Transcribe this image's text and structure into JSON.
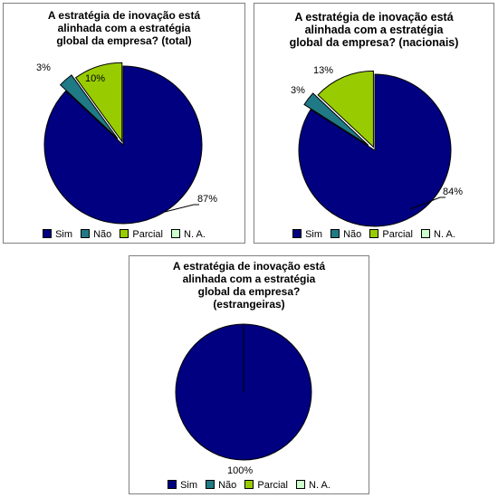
{
  "colors": {
    "Sim": "#000080",
    "Não": "#1F7A86",
    "Parcial": "#99CC00",
    "N. A.": "#CCFFCC"
  },
  "chart_data": [
    {
      "type": "pie",
      "title_lines": [
        "A estratégia de inovação está",
        "alinhada com a estratégia",
        "global da empresa? (total)"
      ],
      "categories": [
        "Sim",
        "Não",
        "Parcial",
        "N. A."
      ],
      "values": [
        87,
        3,
        10,
        0
      ],
      "labels": [
        "87%",
        "3%",
        "10%",
        ""
      ],
      "legend": [
        "Sim",
        "Não",
        "Parcial",
        "N. A."
      ],
      "legend_position": "bottom"
    },
    {
      "type": "pie",
      "title_lines": [
        "A estratégia de inovação está",
        "alinhada com a estratégia",
        "global da empresa? (nacionais)"
      ],
      "categories": [
        "Sim",
        "Não",
        "Parcial",
        "N. A."
      ],
      "values": [
        84,
        3,
        13,
        0
      ],
      "labels": [
        "84%",
        "3%",
        "13%",
        ""
      ],
      "legend": [
        "Sim",
        "Não",
        "Parcial",
        "N. A."
      ],
      "legend_position": "bottom"
    },
    {
      "type": "pie",
      "title_lines": [
        "A estratégia de inovação está",
        "alinhada com a estratégia",
        "global da empresa?",
        "(estrangeiras)"
      ],
      "categories": [
        "Sim",
        "Não",
        "Parcial",
        "N. A."
      ],
      "values": [
        100,
        0,
        0,
        0
      ],
      "labels": [
        "100%",
        "",
        "",
        ""
      ],
      "legend": [
        "Sim",
        "Não",
        "Parcial",
        "N. A."
      ],
      "legend_position": "bottom"
    }
  ]
}
